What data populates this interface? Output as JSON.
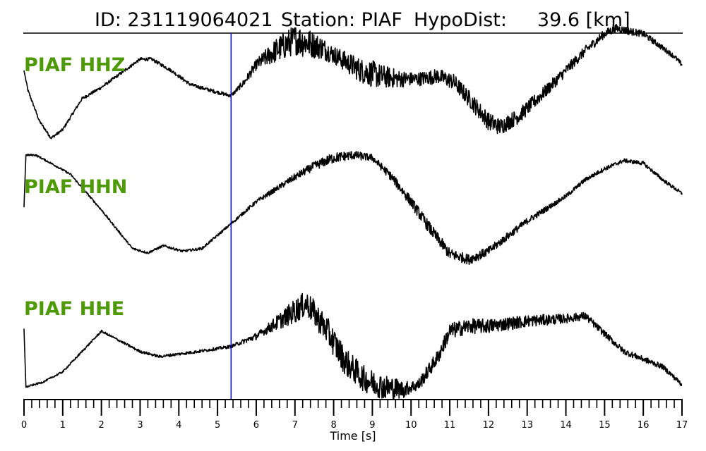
{
  "header": {
    "id_text": "ID: 231119064021",
    "station_text": "Station: PIAF",
    "hypodist_text": "HypoDist:     39.6 [km]"
  },
  "colors": {
    "label_color": "#4e9a06",
    "pick_line_color": "#0000cc",
    "trace_color": "#000000"
  },
  "chart_data": {
    "type": "line",
    "xlabel": "Time [s]",
    "xlim": [
      0,
      17
    ],
    "major_ticks": [
      0,
      1,
      2,
      3,
      4,
      5,
      6,
      7,
      8,
      9,
      10,
      11,
      12,
      13,
      14,
      15,
      16,
      17
    ],
    "tick_labels": [
      "0",
      "1",
      "2",
      "3",
      "4",
      "5",
      "6",
      "7",
      "8",
      "9",
      "10",
      "11",
      "12",
      "13",
      "14",
      "15",
      "16",
      "17"
    ],
    "minor_tick_step": 0.2,
    "pick_time": 5.35,
    "normalized_amplitude_range": [
      -1,
      1
    ],
    "series": [
      {
        "name": "PIAF HHZ",
        "trend_x": [
          0,
          0.1,
          0.4,
          0.7,
          1.0,
          1.5,
          2.0,
          2.5,
          3.0,
          3.3,
          3.8,
          4.3,
          4.8,
          5.35,
          5.7,
          6.0,
          6.5,
          7.0,
          7.3,
          7.7,
          8.2,
          8.7,
          9.2,
          9.7,
          10.2,
          10.7,
          11.1,
          11.5,
          12.0,
          12.3,
          12.8,
          13.5,
          14.0,
          14.5,
          15.0,
          15.3,
          15.6,
          16.0,
          16.4,
          16.8,
          17.0
        ],
        "trend_y": [
          0.35,
          0.0,
          -0.55,
          -0.85,
          -0.7,
          -0.15,
          0.05,
          0.3,
          0.55,
          0.55,
          0.35,
          0.1,
          0.0,
          -0.1,
          0.15,
          0.45,
          0.7,
          0.9,
          0.85,
          0.75,
          0.55,
          0.35,
          0.25,
          0.2,
          0.2,
          0.25,
          0.15,
          -0.15,
          -0.55,
          -0.65,
          -0.45,
          0.0,
          0.35,
          0.7,
          1.0,
          1.1,
          1.05,
          1.0,
          0.8,
          0.6,
          0.45
        ],
        "noise": [
          [
            0,
            0.03
          ],
          [
            5.4,
            0.04
          ],
          [
            6.0,
            0.12
          ],
          [
            6.6,
            0.3
          ],
          [
            7.2,
            0.35
          ],
          [
            8.0,
            0.2
          ],
          [
            9.0,
            0.3
          ],
          [
            10.0,
            0.15
          ],
          [
            12.0,
            0.2
          ],
          [
            14.0,
            0.12
          ],
          [
            17.0,
            0.05
          ]
        ]
      },
      {
        "name": "PIAF HHN",
        "trend_x": [
          0,
          0.05,
          0.3,
          0.7,
          1.2,
          2.0,
          2.8,
          3.2,
          3.6,
          4.1,
          4.6,
          5.35,
          6.0,
          7.0,
          7.5,
          8.0,
          8.5,
          9.0,
          9.5,
          10.0,
          10.5,
          11.0,
          11.5,
          12.0,
          13.0,
          14.0,
          14.5,
          15.0,
          15.5,
          16.0,
          16.5,
          17.0
        ],
        "trend_y": [
          0.05,
          1.0,
          1.0,
          0.85,
          0.65,
          0.0,
          -0.7,
          -0.78,
          -0.65,
          -0.75,
          -0.7,
          -0.25,
          0.15,
          0.6,
          0.8,
          0.95,
          1.0,
          0.95,
          0.6,
          0.15,
          -0.35,
          -0.8,
          -0.9,
          -0.75,
          -0.2,
          0.25,
          0.55,
          0.75,
          0.9,
          0.85,
          0.55,
          0.3
        ],
        "noise": [
          [
            0,
            0.02
          ],
          [
            5.4,
            0.03
          ],
          [
            6.5,
            0.06
          ],
          [
            8.0,
            0.12
          ],
          [
            9.0,
            0.08
          ],
          [
            10.5,
            0.14
          ],
          [
            12.0,
            0.1
          ],
          [
            14.0,
            0.05
          ],
          [
            17.0,
            0.04
          ]
        ]
      },
      {
        "name": "PIAF HHE",
        "trend_x": [
          0,
          0.05,
          0.5,
          1.0,
          1.5,
          2.0,
          2.5,
          3.0,
          3.5,
          4.0,
          4.5,
          5.35,
          6.0,
          6.5,
          7.0,
          7.3,
          7.8,
          8.3,
          8.8,
          9.3,
          9.8,
          10.2,
          10.7,
          11.0,
          11.5,
          12.0,
          13.0,
          14.0,
          14.5,
          15.0,
          15.5,
          16.0,
          16.5,
          17.0
        ],
        "trend_y": [
          0.3,
          -0.85,
          -0.75,
          -0.55,
          -0.15,
          0.25,
          0.05,
          -0.15,
          -0.25,
          -0.2,
          -0.15,
          -0.05,
          0.15,
          0.4,
          0.65,
          0.8,
          0.3,
          -0.35,
          -0.7,
          -0.85,
          -0.9,
          -0.8,
          -0.25,
          0.25,
          0.35,
          0.35,
          0.45,
          0.5,
          0.55,
          0.2,
          -0.15,
          -0.3,
          -0.45,
          -0.8
        ],
        "noise": [
          [
            0,
            0.02
          ],
          [
            5.4,
            0.04
          ],
          [
            6.2,
            0.1
          ],
          [
            7.0,
            0.3
          ],
          [
            8.0,
            0.35
          ],
          [
            9.5,
            0.3
          ],
          [
            10.0,
            0.15
          ],
          [
            11.0,
            0.2
          ],
          [
            13.0,
            0.15
          ],
          [
            15.0,
            0.08
          ],
          [
            17.0,
            0.06
          ]
        ]
      }
    ]
  }
}
